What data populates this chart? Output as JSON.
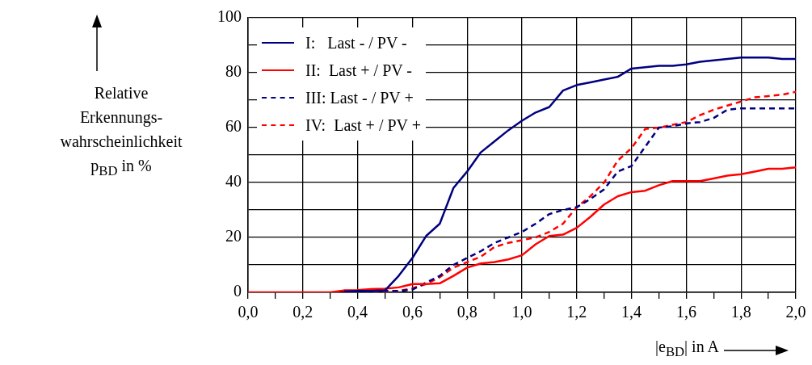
{
  "chart_data": {
    "type": "line",
    "xlabel": "|e$_{BD}$| in A",
    "ylabel": "Relative\nErkennungs-\nwahrscheinlichkeit\np$_{BD}$ in %",
    "x": [
      0,
      0.05,
      0.1,
      0.15,
      0.2,
      0.25,
      0.3,
      0.35,
      0.4,
      0.45,
      0.5,
      0.55,
      0.6,
      0.65,
      0.7,
      0.75,
      0.8,
      0.85,
      0.9,
      0.95,
      1.0,
      1.05,
      1.1,
      1.15,
      1.2,
      1.25,
      1.3,
      1.35,
      1.4,
      1.45,
      1.5,
      1.55,
      1.6,
      1.65,
      1.7,
      1.75,
      1.8,
      1.85,
      1.9,
      1.95,
      2.0
    ],
    "series": [
      {
        "name": "I:   Last - / PV -",
        "color": "#000080",
        "line_style": "solid",
        "values": [
          null,
          null,
          null,
          null,
          null,
          null,
          null,
          0.3,
          0.5,
          0.5,
          0.7,
          6,
          12.5,
          20.5,
          25,
          38,
          44,
          51,
          55,
          59,
          62.5,
          65.5,
          67.5,
          73.5,
          75.5,
          76.5,
          77.5,
          78.5,
          81.5,
          82,
          82.5,
          82.5,
          83,
          84,
          84.5,
          85,
          85.5,
          85.5,
          85.5,
          85,
          85
        ]
      },
      {
        "name": "II:  Last + / PV -",
        "color": "#ff0000",
        "line_style": "solid",
        "values": [
          0,
          0,
          0,
          0,
          0,
          0,
          0,
          0.7,
          0.8,
          1.2,
          1.3,
          1.8,
          3,
          3,
          3.3,
          6,
          9,
          10.5,
          11,
          12,
          13.5,
          17.5,
          20.5,
          21,
          23.5,
          27.5,
          32,
          35,
          36.5,
          37,
          39,
          40.5,
          40.5,
          40.5,
          41.5,
          42.5,
          43,
          44,
          45,
          45,
          45.5
        ]
      },
      {
        "name": "III: Last - / PV +",
        "color": "#000080",
        "line_style": "dashed",
        "values": [
          null,
          null,
          null,
          null,
          null,
          null,
          null,
          0,
          0.3,
          0.5,
          0.5,
          0.5,
          1,
          3.5,
          6,
          10,
          12.5,
          15,
          18,
          20,
          22,
          25,
          28.5,
          30,
          31,
          34,
          37.5,
          44,
          46,
          53,
          60,
          60.5,
          61.5,
          62,
          63.5,
          66.5,
          67,
          67,
          67,
          67,
          67
        ]
      },
      {
        "name": "IV:  Last + / PV +",
        "color": "#ff0000",
        "line_style": "dashed",
        "values": [
          null,
          null,
          null,
          null,
          null,
          null,
          null,
          0,
          0,
          0,
          0,
          0.5,
          1.5,
          3,
          5.5,
          9,
          11,
          13,
          16.5,
          18,
          19,
          20,
          22,
          25,
          31,
          35,
          40,
          48,
          52.5,
          59.5,
          60,
          61,
          62,
          64.5,
          66.5,
          68,
          69.5,
          71,
          71.5,
          72,
          73
        ]
      }
    ],
    "xlim": [
      0,
      2.0
    ],
    "xticks": [
      {
        "value": 0,
        "label": "0,0"
      },
      {
        "value": 0.1,
        "label": null
      },
      {
        "value": 0.2,
        "label": "0,2"
      },
      {
        "value": 0.3,
        "label": null
      },
      {
        "value": 0.4,
        "label": "0,4"
      },
      {
        "value": 0.5,
        "label": null
      },
      {
        "value": 0.6,
        "label": "0,6"
      },
      {
        "value": 0.7,
        "label": null
      },
      {
        "value": 0.8,
        "label": "0,8"
      },
      {
        "value": 0.9,
        "label": null
      },
      {
        "value": 1.0,
        "label": "1,0"
      },
      {
        "value": 1.1,
        "label": null
      },
      {
        "value": 1.2,
        "label": "1,2"
      },
      {
        "value": 1.3,
        "label": null
      },
      {
        "value": 1.4,
        "label": "1,4"
      },
      {
        "value": 1.5,
        "label": null
      },
      {
        "value": 1.6,
        "label": "1,6"
      },
      {
        "value": 1.7,
        "label": null
      },
      {
        "value": 1.8,
        "label": "1,8"
      },
      {
        "value": 1.9,
        "label": null
      },
      {
        "value": 2.0,
        "label": "2,0"
      }
    ],
    "ylim": [
      0,
      100
    ],
    "yticks": [
      0,
      {
        "value": 10,
        "label": null
      },
      20,
      {
        "value": 30,
        "label": null
      },
      40,
      {
        "value": 50,
        "label": null
      },
      60,
      {
        "value": 70,
        "label": null
      },
      80,
      {
        "value": 90,
        "label": null
      },
      100
    ],
    "grid": true,
    "legend": "top left",
    "marker": "none"
  }
}
